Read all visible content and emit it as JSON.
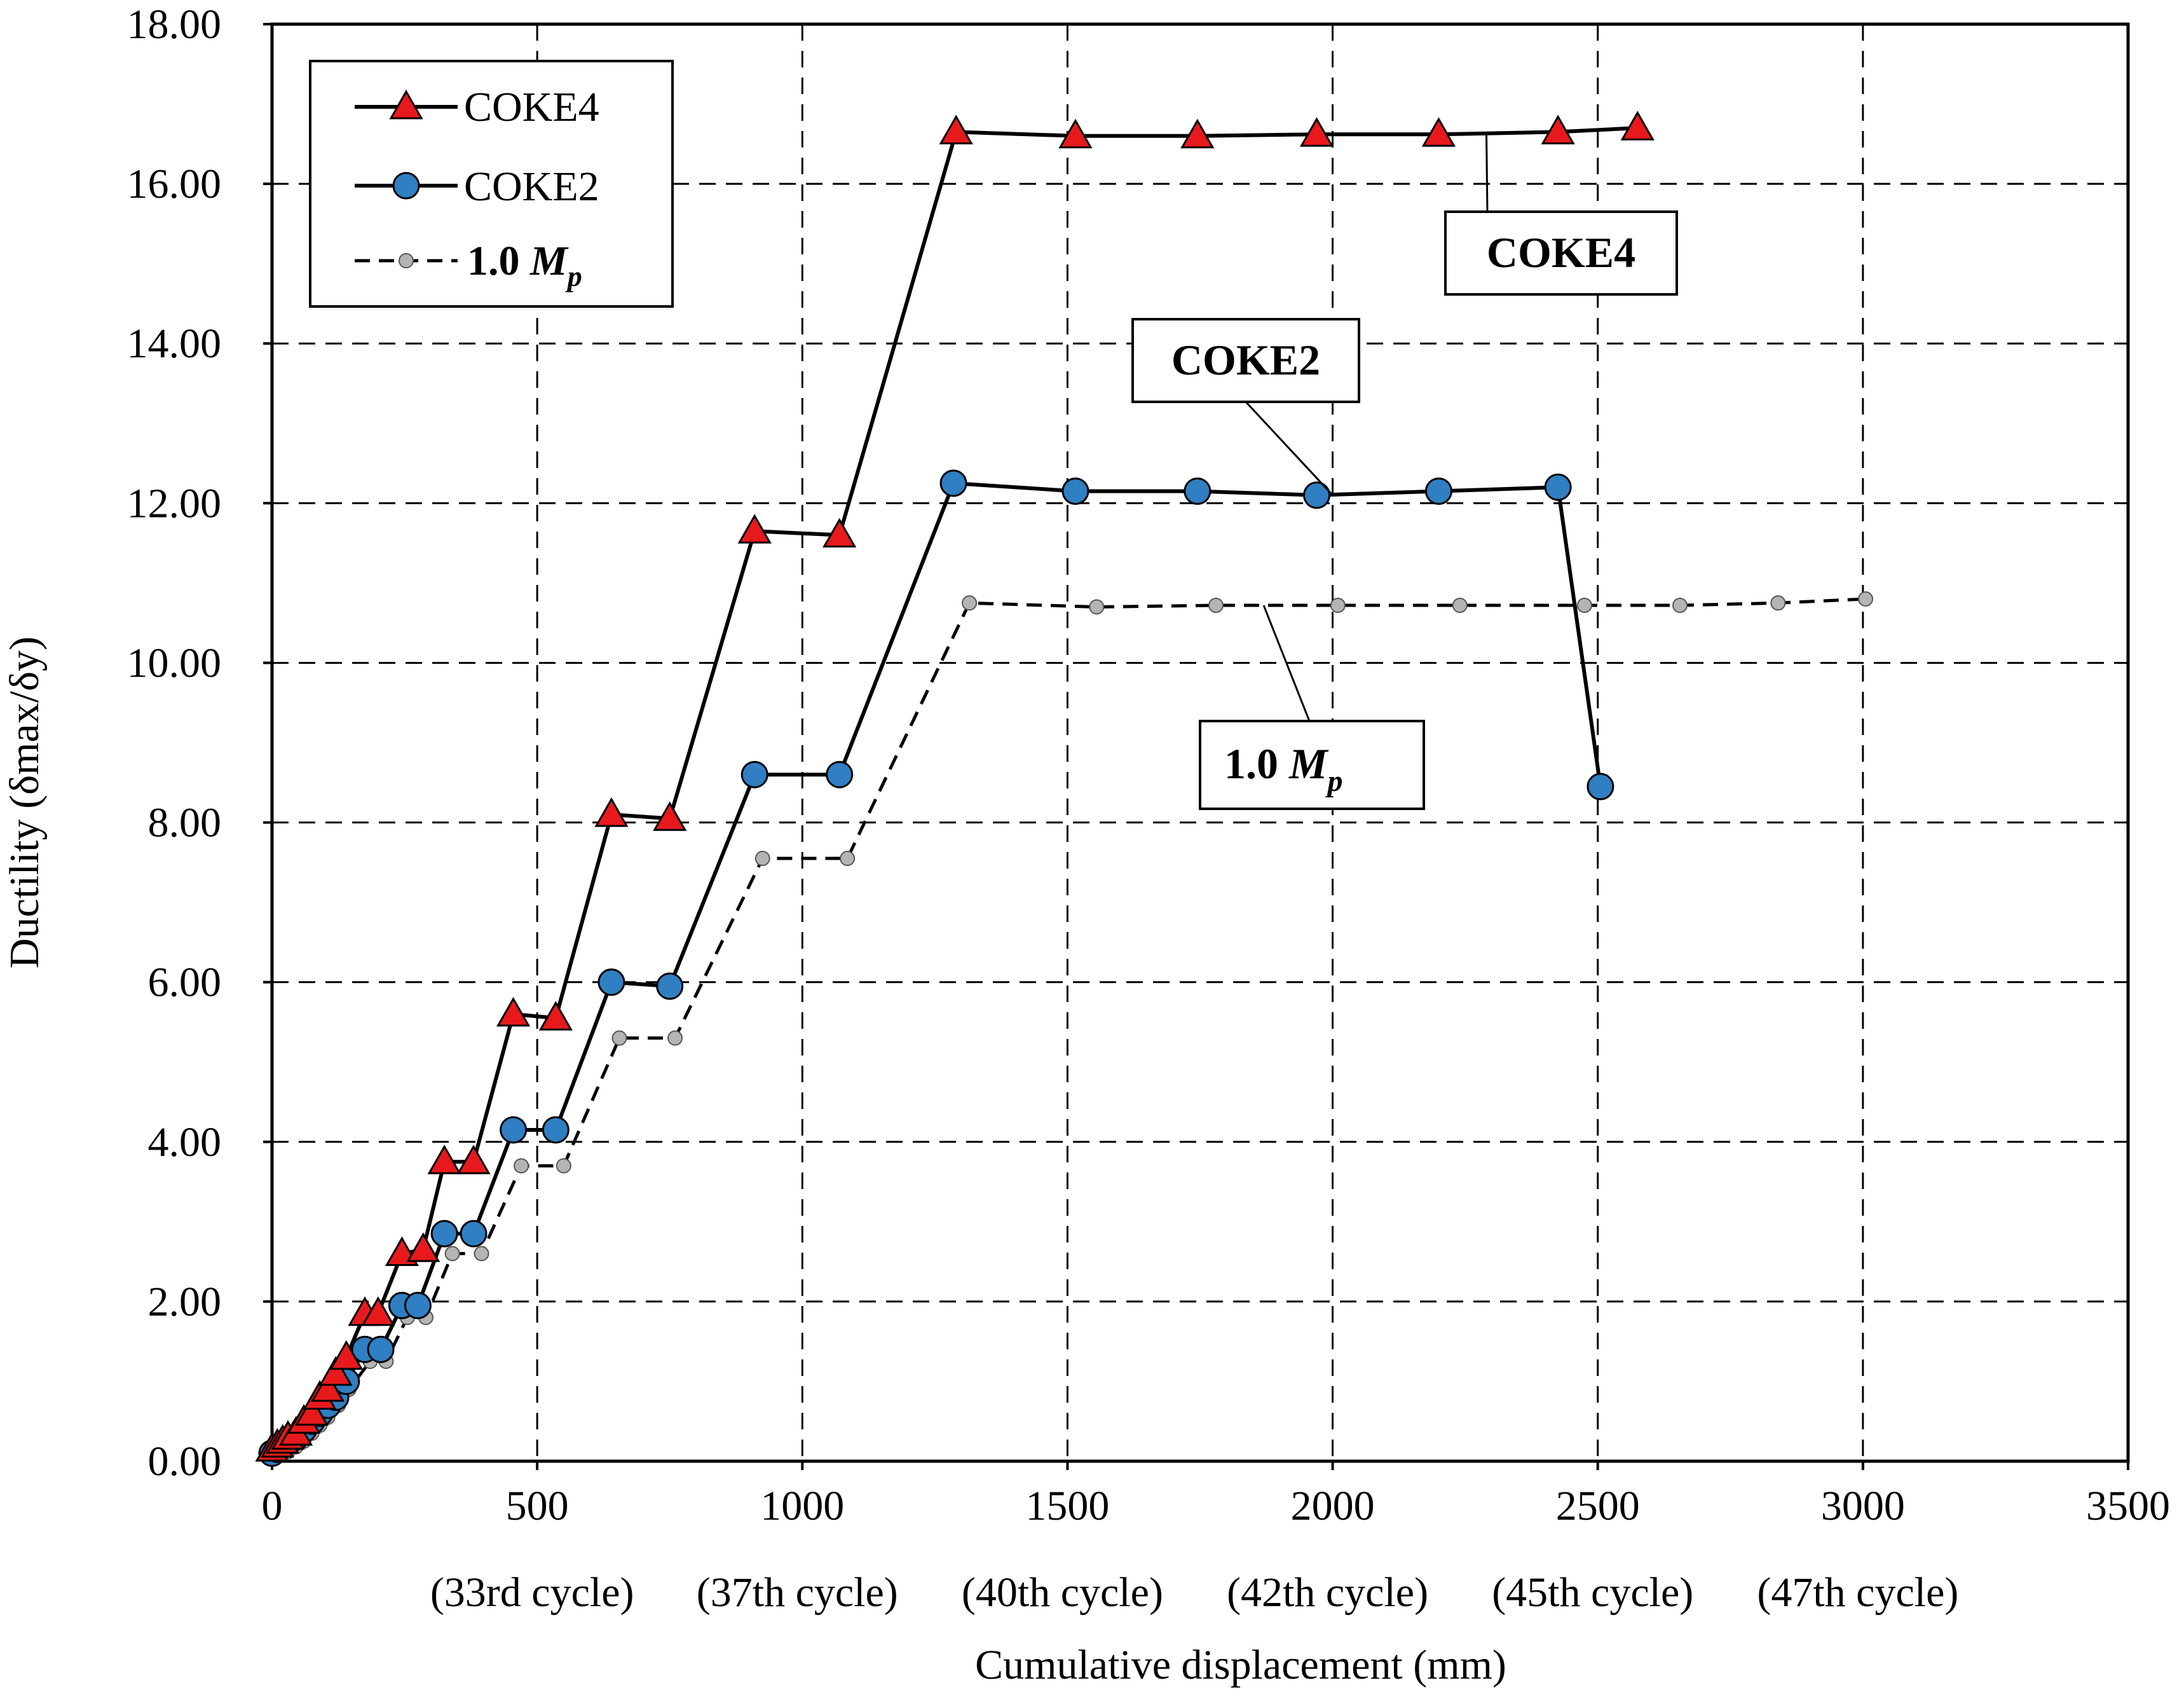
{
  "chart_data": {
    "type": "line",
    "xlabel": "Cumulative displacement (mm)",
    "ylabel": "Ductility (δmax/δy)",
    "xlim": [
      0,
      3500
    ],
    "ylim": [
      0,
      18
    ],
    "x_ticks": [
      0,
      500,
      1000,
      1500,
      2000,
      2500,
      3000,
      3500
    ],
    "y_ticks": [
      "0.00",
      "2.00",
      "4.00",
      "6.00",
      "8.00",
      "10.00",
      "12.00",
      "14.00",
      "16.00",
      "18.00"
    ],
    "grid": true,
    "cycle_labels": [
      {
        "x": 500,
        "text": "(33rd cycle)"
      },
      {
        "x": 1000,
        "text": "(37th cycle)"
      },
      {
        "x": 1500,
        "text": "(40th cycle)"
      },
      {
        "x": 2000,
        "text": "(42th cycle)"
      },
      {
        "x": 2500,
        "text": "(45th cycle)"
      },
      {
        "x": 3000,
        "text": "(47th cycle)"
      }
    ],
    "legend_position": "top-left",
    "series": [
      {
        "name": "COKE4",
        "marker": "triangle",
        "color": "#e8191c",
        "line": "solid",
        "x": [
          0,
          10,
          20,
          30,
          45,
          60,
          75,
          90,
          105,
          120,
          140,
          175,
          200,
          245,
          285,
          325,
          380,
          455,
          535,
          640,
          750,
          910,
          1070,
          1290,
          1515,
          1745,
          1970,
          2200,
          2425,
          2575
        ],
        "y": [
          0.15,
          0.2,
          0.25,
          0.3,
          0.35,
          0.5,
          0.6,
          0.8,
          0.9,
          1.1,
          1.3,
          1.85,
          1.85,
          2.6,
          2.65,
          3.75,
          3.75,
          5.6,
          5.55,
          8.1,
          8.05,
          11.65,
          11.6,
          16.65,
          16.6,
          16.6,
          16.62,
          16.62,
          16.65,
          16.7
        ]
      },
      {
        "name": "COKE2",
        "marker": "circle",
        "color": "#2f7fc2",
        "line": "solid",
        "x": [
          0,
          10,
          20,
          30,
          45,
          60,
          75,
          90,
          105,
          120,
          140,
          175,
          205,
          245,
          275,
          325,
          380,
          455,
          535,
          640,
          750,
          910,
          1070,
          1285,
          1515,
          1745,
          1970,
          2200,
          2425,
          2505
        ],
        "y": [
          0.1,
          0.15,
          0.2,
          0.25,
          0.3,
          0.4,
          0.5,
          0.6,
          0.7,
          0.8,
          1.0,
          1.4,
          1.4,
          1.95,
          1.95,
          2.85,
          2.85,
          4.15,
          4.15,
          6.0,
          5.95,
          8.6,
          8.6,
          12.25,
          12.15,
          12.15,
          12.1,
          12.15,
          12.2,
          8.45
        ]
      },
      {
        "name": "1.0 Mp",
        "marker": "small-circle",
        "color": "#b4b4b4",
        "line": "dashed",
        "x": [
          0,
          15,
          30,
          45,
          60,
          75,
          90,
          105,
          125,
          145,
          185,
          215,
          255,
          290,
          340,
          395,
          470,
          550,
          655,
          760,
          925,
          1085,
          1315,
          1555,
          1780,
          2010,
          2240,
          2475,
          2655,
          2840,
          3005
        ],
        "y": [
          0.05,
          0.1,
          0.12,
          0.18,
          0.25,
          0.35,
          0.45,
          0.55,
          0.7,
          0.9,
          1.25,
          1.25,
          1.8,
          1.8,
          2.6,
          2.6,
          3.7,
          3.7,
          5.3,
          5.3,
          7.55,
          7.55,
          10.75,
          10.7,
          10.72,
          10.72,
          10.72,
          10.72,
          10.72,
          10.75,
          10.8
        ]
      }
    ],
    "legend": {
      "entries": [
        {
          "label": "COKE4",
          "marker": "triangle",
          "line": "solid"
        },
        {
          "label": "COKE2",
          "marker": "circle",
          "line": "solid"
        },
        {
          "label": "1.0 Mp",
          "label_prefix": "1.0 ",
          "label_italic": "M",
          "label_sub": "p",
          "bold": true,
          "marker": "small-circle",
          "line": "dashed"
        }
      ]
    },
    "annotations": [
      {
        "text": "COKE4",
        "series": "COKE4",
        "target": [
          2290,
          16.62
        ]
      },
      {
        "text": "COKE2",
        "series": "COKE2",
        "target": [
          2000,
          12.1
        ]
      },
      {
        "label_prefix": "1.0 ",
        "label_italic": "M",
        "label_sub": "p",
        "series": "1.0 Mp",
        "target": [
          1870,
          10.72
        ]
      }
    ]
  }
}
